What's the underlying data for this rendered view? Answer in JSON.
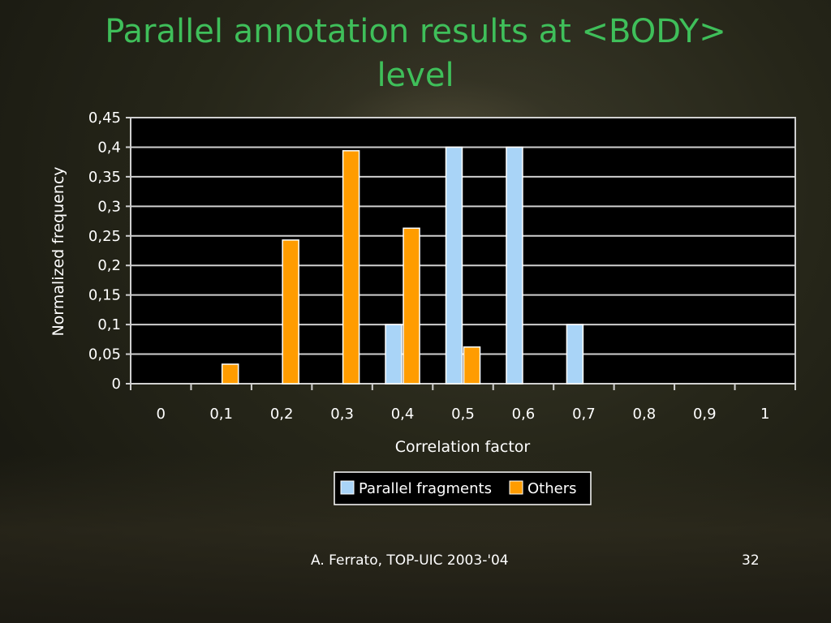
{
  "slide": {
    "title_line1": "Parallel annotation results at <BODY>",
    "title_line2": "level",
    "footer": "A. Ferrato, TOP-UIC 2003-'04",
    "page_number": "32"
  },
  "colors": {
    "title": "#3fbf5a",
    "parallel_fragments": "#a9d4f7",
    "others": "#ff9c00",
    "plot_background": "#000000",
    "gridlines": "#d0d0d0",
    "text": "#ffffff"
  },
  "chart_data": {
    "type": "bar",
    "categories": [
      "0",
      "0,1",
      "0,2",
      "0,3",
      "0,4",
      "0,5",
      "0,6",
      "0,7",
      "0,8",
      "0,9",
      "1"
    ],
    "series": [
      {
        "name": "Parallel fragments",
        "values": [
          0,
          0,
          0,
          0,
          0.1,
          0.4,
          0.4,
          0.1,
          0,
          0,
          0
        ]
      },
      {
        "name": "Others",
        "values": [
          0,
          0.033,
          0.243,
          0.394,
          0.263,
          0.062,
          0,
          0,
          0,
          0,
          0
        ]
      }
    ],
    "title": "",
    "xlabel": "Correlation factor",
    "ylabel": "Normalized frequency",
    "ylim": [
      0,
      0.45
    ],
    "yticks": [
      "0",
      "0,05",
      "0,1",
      "0,15",
      "0,2",
      "0,25",
      "0,3",
      "0,35",
      "0,4",
      "0,45"
    ],
    "grid": true,
    "legend_position": "bottom"
  }
}
